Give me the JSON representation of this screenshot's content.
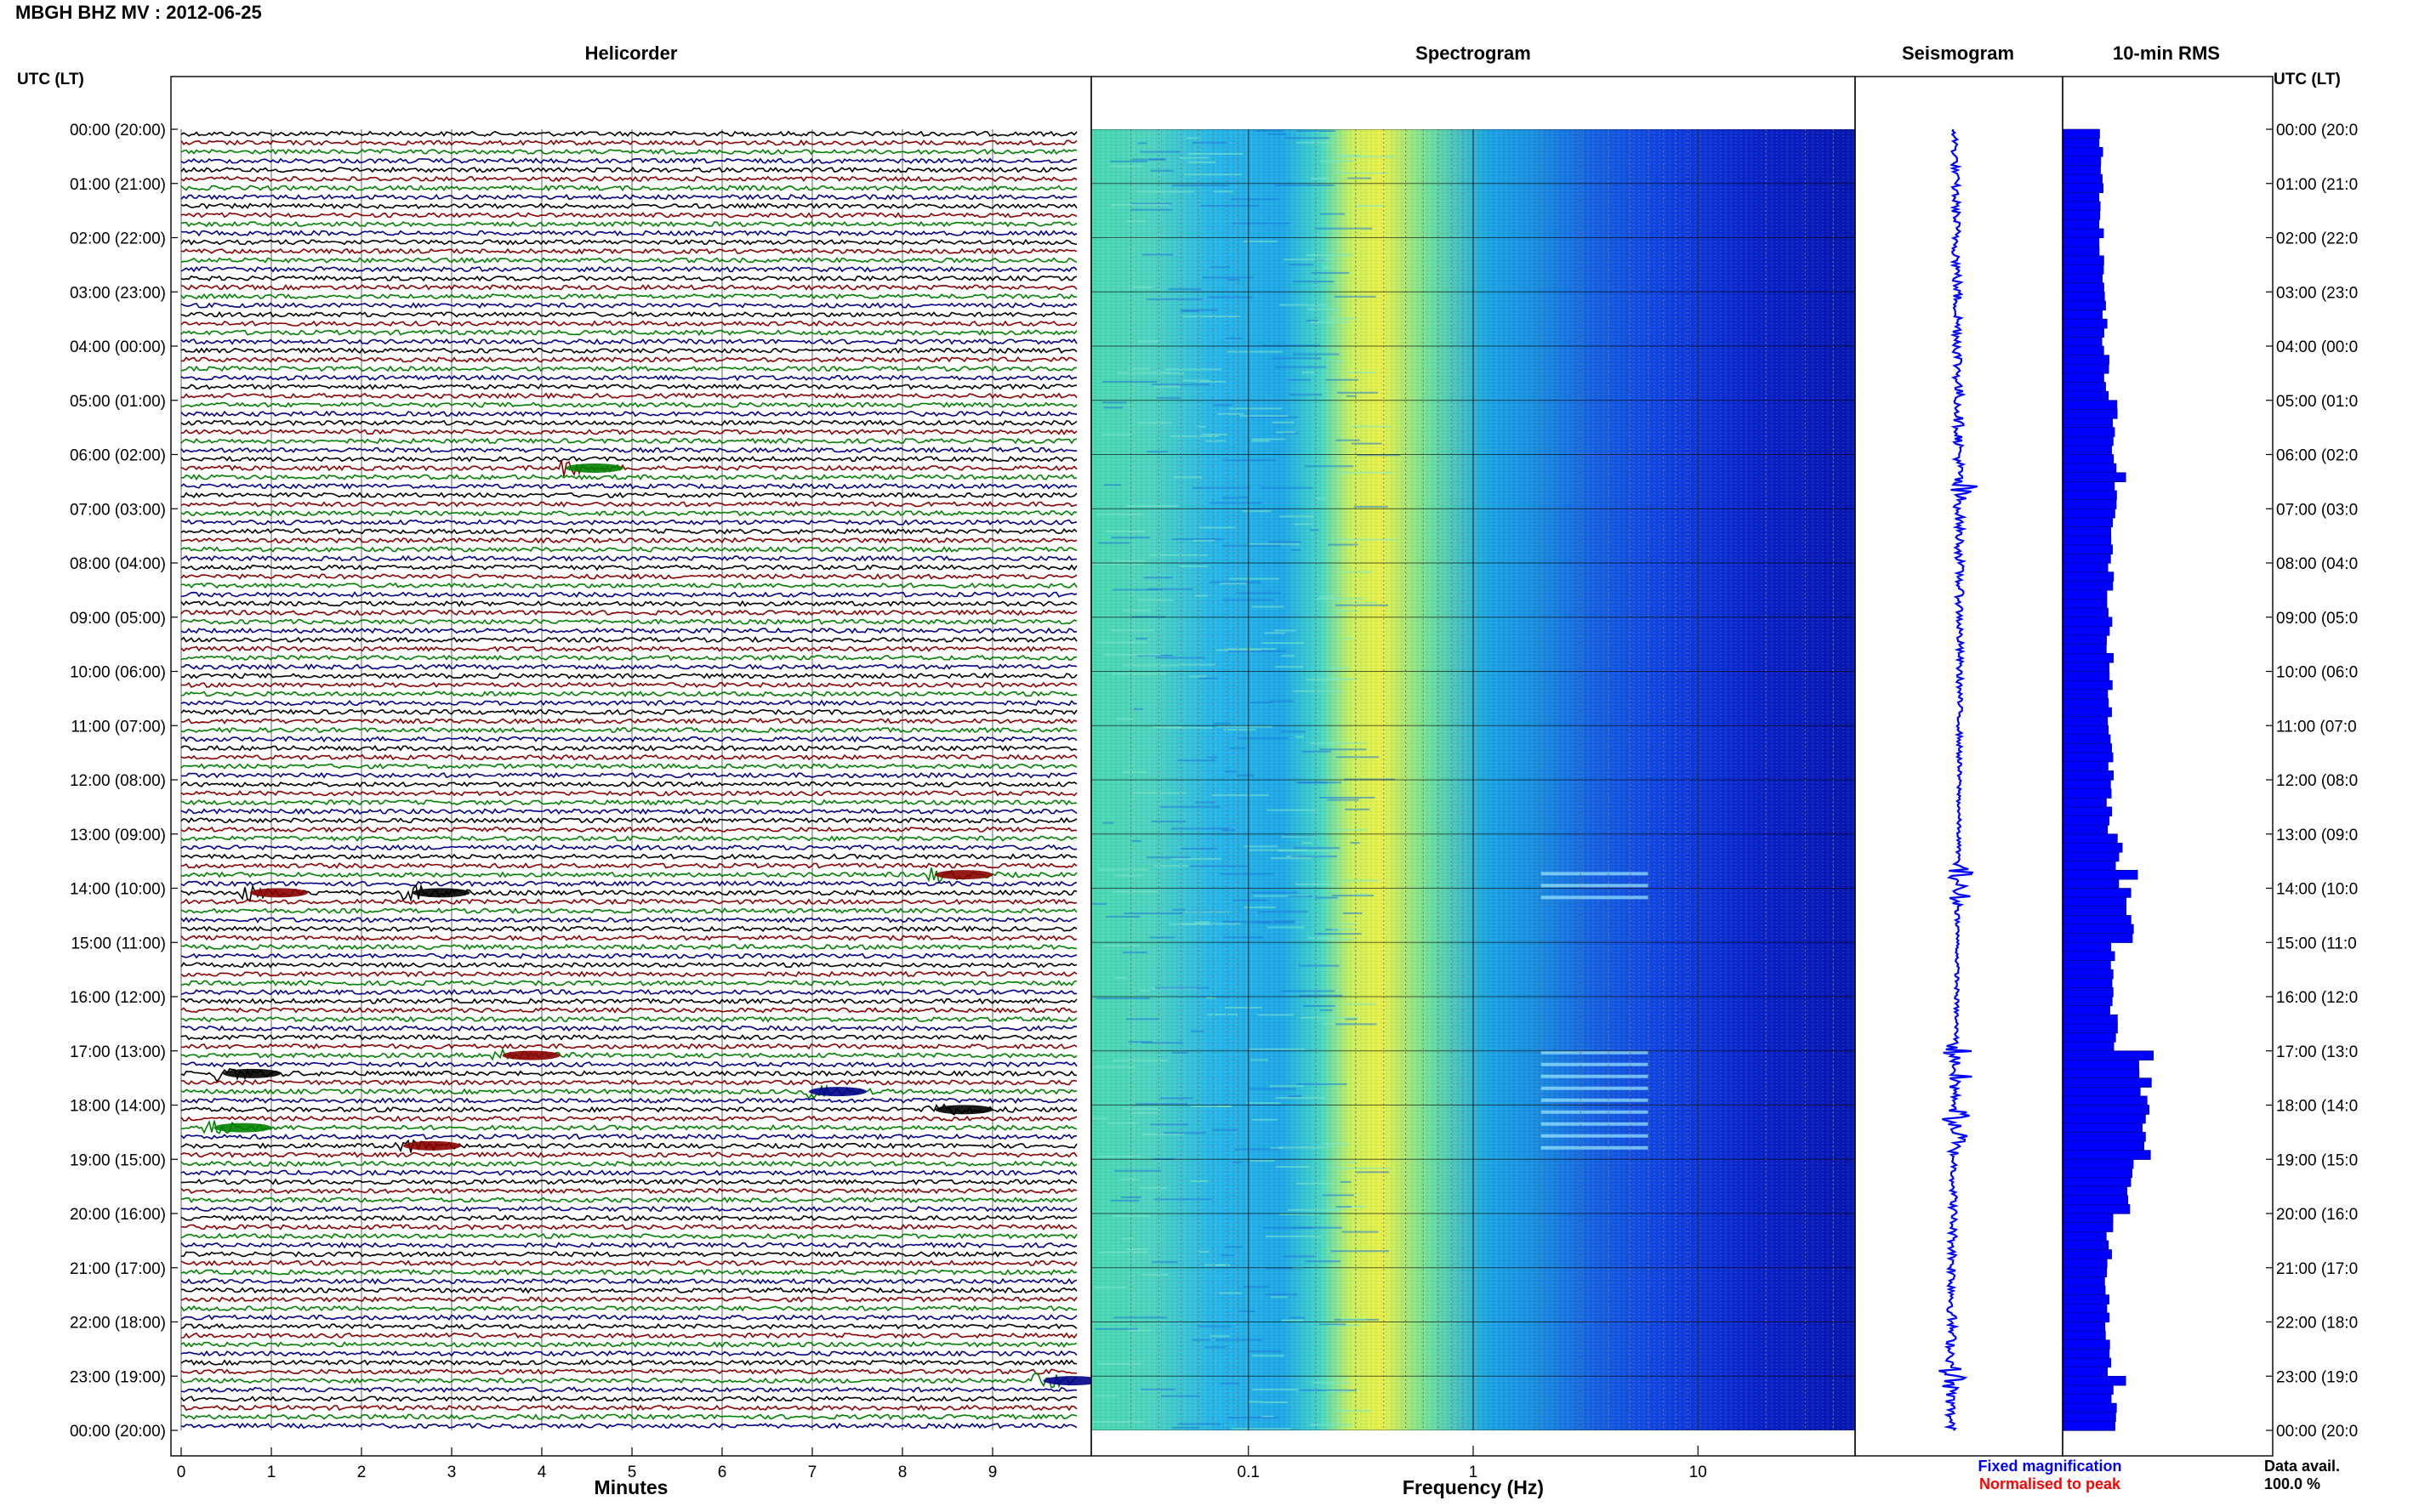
{
  "header": {
    "title": "MBGH BHZ MV : 2012-06-25"
  },
  "panels": {
    "helicorder_title": "Helicorder",
    "spectrogram_title": "Spectrogram",
    "seismogram_title": "Seismogram",
    "rms_title": "10-min RMS"
  },
  "left_axis_title": "UTC (LT)",
  "right_axis_title": "UTC (LT)",
  "time_labels": [
    "00:00 (20:00)",
    "01:00 (21:00)",
    "02:00 (22:00)",
    "03:00 (23:00)",
    "04:00 (00:00)",
    "05:00 (01:00)",
    "06:00 (02:00)",
    "07:00 (03:00)",
    "08:00 (04:00)",
    "09:00 (05:00)",
    "10:00 (06:00)",
    "11:00 (07:00)",
    "12:00 (08:00)",
    "13:00 (09:00)",
    "14:00 (10:00)",
    "15:00 (11:00)",
    "16:00 (12:00)",
    "17:00 (13:00)",
    "18:00 (14:00)",
    "19:00 (15:00)",
    "20:00 (16:00)",
    "21:00 (17:00)",
    "22:00 (18:00)",
    "23:00 (19:00)",
    "00:00 (20:00)"
  ],
  "right_time_labels": [
    "00:00 (20:0",
    "01:00 (21:0",
    "02:00 (22:0",
    "03:00 (23:0",
    "04:00 (00:0",
    "05:00 (01:0",
    "06:00 (02:0",
    "07:00 (03:0",
    "08:00 (04:0",
    "09:00 (05:0",
    "10:00 (06:0",
    "11:00 (07:0",
    "12:00 (08:0",
    "13:00 (09:0",
    "14:00 (10:0",
    "15:00 (11:0",
    "16:00 (12:0",
    "17:00 (13:0",
    "18:00 (14:0",
    "19:00 (15:0",
    "20:00 (16:0",
    "21:00 (17:0",
    "22:00 (18:0",
    "23:00 (19:0",
    "00:00 (20:0"
  ],
  "helicorder": {
    "xlabel": "Minutes",
    "ticks": [
      "0",
      "1",
      "2",
      "3",
      "4",
      "5",
      "6",
      "7",
      "8",
      "9"
    ],
    "trace_colors": [
      "#000000",
      "#8b0000",
      "#008000",
      "#00008b"
    ]
  },
  "spectrogram": {
    "xlabel": "Frequency (Hz)",
    "ticks": [
      "0.1",
      "1",
      "10"
    ]
  },
  "legend": {
    "fixed": "Fixed magnification",
    "fixed_color": "#0000ff",
    "normalised": "Normalised to peak",
    "normalised_color": "#ff0000"
  },
  "data_avail": {
    "label": "Data avail.",
    "value": "100.0 %"
  },
  "chart_data": [
    {
      "type": "line",
      "name": "Helicorder",
      "x": "minutes 0-10",
      "xlim": [
        0,
        10
      ],
      "rows_per_hour": 6,
      "rows": 144,
      "events": [
        {
          "hour": 6.2,
          "minute": 4.3,
          "color": "#008000"
        },
        {
          "hour": 13.6,
          "minute": 8.4,
          "color": "#8b0000"
        },
        {
          "hour": 14.0,
          "minute": 0.8,
          "color": "#8b0000"
        },
        {
          "hour": 14.0,
          "minute": 2.6,
          "color": "#000000"
        },
        {
          "hour": 17.0,
          "minute": 3.6,
          "color": "#8b0000"
        },
        {
          "hour": 17.3,
          "minute": 0.5,
          "color": "#000000"
        },
        {
          "hour": 17.6,
          "minute": 7.0,
          "color": "#00008b"
        },
        {
          "hour": 18.0,
          "minute": 8.4,
          "color": "#000000"
        },
        {
          "hour": 18.3,
          "minute": 0.4,
          "color": "#008000"
        },
        {
          "hour": 18.6,
          "minute": 2.5,
          "color": "#8b0000"
        },
        {
          "hour": 23.0,
          "minute": 9.6,
          "color": "#00008b"
        }
      ]
    },
    {
      "type": "heatmap",
      "name": "Spectrogram",
      "xscale": "log",
      "xlim": [
        0.02,
        50
      ],
      "ylim": [
        0,
        24
      ],
      "peak_band_hz": [
        0.25,
        0.6
      ],
      "tremor_bands": [
        {
          "hour_start": 13.7,
          "hour_end": 14.3,
          "hz": [
            2,
            6
          ]
        },
        {
          "hour_start": 17.0,
          "hour_end": 18.9,
          "hz": [
            2,
            6
          ]
        }
      ]
    },
    {
      "type": "line",
      "name": "Seismogram",
      "ylim": [
        0,
        24
      ],
      "bursts": [
        6.6,
        13.7,
        14.1,
        17.0,
        17.5,
        18.2,
        18.6,
        23.0
      ]
    },
    {
      "type": "bar",
      "name": "10-min RMS",
      "orientation": "horizontal",
      "ylim": [
        0,
        24
      ],
      "bin_minutes": 10,
      "hourly_values": [
        1.0,
        1.0,
        1.0,
        1.05,
        1.1,
        1.3,
        1.4,
        1.25,
        1.2,
        1.2,
        1.2,
        1.2,
        1.2,
        1.45,
        1.7,
        1.3,
        1.3,
        2.0,
        2.1,
        1.7,
        1.2,
        1.15,
        1.15,
        1.3
      ],
      "peaks": [
        {
          "hour": 6.3,
          "value": 1.6
        },
        {
          "hour": 13.7,
          "value": 1.9
        },
        {
          "hour": 17.0,
          "value": 2.3
        },
        {
          "hour": 17.5,
          "value": 2.25
        },
        {
          "hour": 18.2,
          "value": 2.1
        },
        {
          "hour": 23.0,
          "value": 1.6
        }
      ]
    }
  ]
}
